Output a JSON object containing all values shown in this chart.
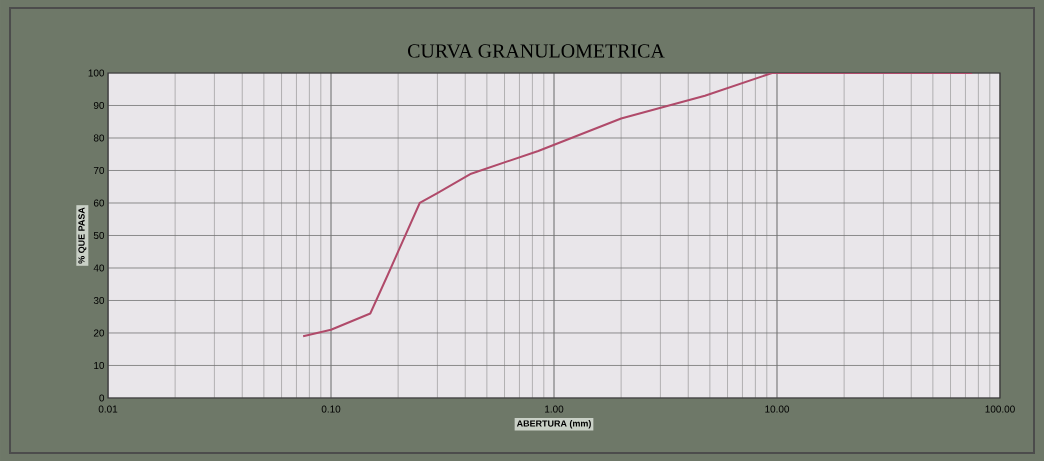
{
  "chart_data": {
    "type": "line",
    "title": "CURVA GRANULOMETRICA",
    "xlabel": "ABERTURA (mm)",
    "ylabel": "% QUE PASA",
    "log": "x",
    "grid": true,
    "marker": "none",
    "line_style": "solid",
    "xlim": [
      0.01,
      100
    ],
    "ylim": [
      0,
      100
    ],
    "xticks": [
      {
        "value": 0.01,
        "label": "0.01"
      },
      {
        "value": 0.1,
        "label": "0.10"
      },
      {
        "value": 1,
        "label": "1.00"
      },
      {
        "value": 10,
        "label": "10.00"
      },
      {
        "value": 100,
        "label": "100.00"
      }
    ],
    "yticks": [
      0,
      10,
      20,
      30,
      40,
      50,
      60,
      70,
      80,
      90,
      100
    ],
    "series": [
      {
        "color": "#b04a6a",
        "x": [
          0.075,
          0.1,
          0.15,
          0.18,
          0.25,
          0.3,
          0.425,
          0.85,
          2.0,
          4.75,
          9.5,
          19,
          25,
          37.5,
          50,
          75
        ],
        "values": [
          19,
          21,
          26,
          38,
          60,
          63,
          69,
          76,
          86,
          93,
          100,
          100,
          100,
          100,
          100,
          100
        ]
      }
    ]
  }
}
